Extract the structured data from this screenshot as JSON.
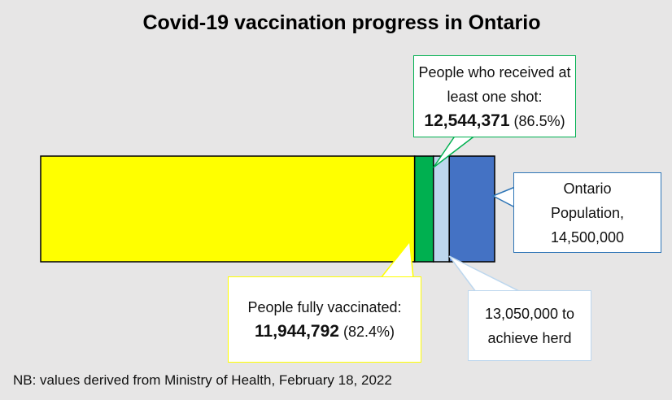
{
  "chart_data": {
    "type": "bar",
    "orientation": "horizontal-overlapping",
    "title": "Covid-19 vaccination progress in Ontario",
    "xlim": [
      0,
      14500000
    ],
    "series": [
      {
        "key": "population",
        "value": 14500000,
        "color": "#4472c4"
      },
      {
        "key": "herd",
        "value": 13050000,
        "color": "#bdd7ee"
      },
      {
        "key": "one_shot",
        "value": 12544371,
        "color": "#00b050"
      },
      {
        "key": "fully",
        "value": 11944792,
        "color": "#ffff00"
      }
    ],
    "callouts": {
      "one_shot": {
        "line1": "People who received at",
        "line2": "least one shot:",
        "value": "12,544,371",
        "pct": "(86.5%)",
        "border": "#00b050"
      },
      "population": {
        "line1": "Ontario",
        "line2": "Population,",
        "line3": "14,500,000",
        "border": "#2e75b6"
      },
      "herd": {
        "line1": "13,050,000 to",
        "line2": "achieve herd",
        "border": "#bdd7ee"
      },
      "fully": {
        "line1": "People fully vaccinated:",
        "value": "11,944,792",
        "pct": "(82.4%)",
        "border": "#ffff00"
      }
    },
    "note": "NB: values derived from Ministry of Health, February 18, 2022"
  }
}
